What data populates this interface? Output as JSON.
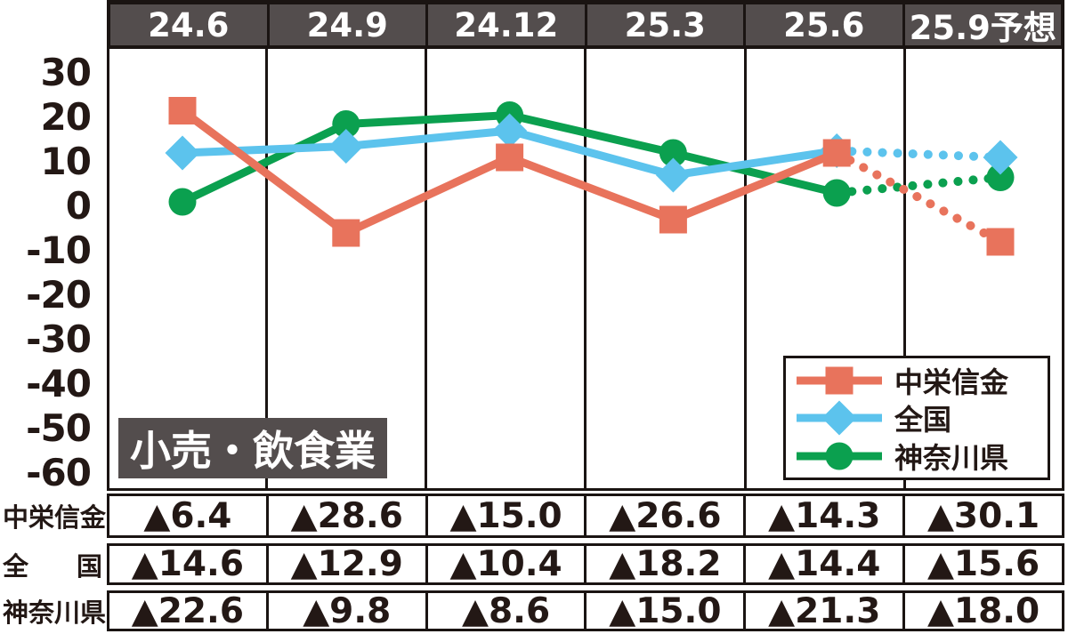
{
  "colors": {
    "panel_gray": "#534D4D",
    "border_ink": "#1A1412",
    "text_ink": "#231815",
    "background": "#FFFFFF",
    "series_red": "#E8735C",
    "series_blue": "#5CC3ED",
    "series_green": "#0BA04F"
  },
  "chart_data": {
    "type": "line",
    "title": "小売・飲食業",
    "x_labels": [
      "24.6",
      "24.9",
      "24.12",
      "25.3",
      "25.6",
      "25.9予想"
    ],
    "y_ticks": [
      30,
      20,
      10,
      0,
      -10,
      -20,
      -30,
      -40,
      -50,
      -60
    ],
    "ylim": [
      -65,
      35
    ],
    "grid": "vertical-column-dividers-only",
    "legend_position": "bottom-right",
    "forecast_last_segment_dotted": true,
    "series": [
      {
        "id": "chuei-shinkin",
        "name": "中栄信金",
        "color": "#E8735C",
        "marker": "square",
        "values": [
          21.5,
          -6,
          11,
          -3,
          12,
          -8
        ]
      },
      {
        "id": "zenkoku",
        "name": "全国",
        "color": "#5CC3ED",
        "marker": "diamond",
        "values": [
          12,
          13.5,
          17,
          7,
          12.5,
          11
        ]
      },
      {
        "id": "kanagawa",
        "name": "神奈川県",
        "color": "#0BA04F",
        "marker": "circle",
        "values": [
          1,
          18.5,
          20.5,
          12,
          3,
          6.5
        ]
      }
    ],
    "table": {
      "negative_mark": "▲",
      "rows": [
        {
          "id": "chuei-shinkin",
          "label": "中栄信金",
          "values": [
            "▲6.4",
            "▲28.6",
            "▲15.0",
            "▲26.6",
            "▲14.3",
            "▲30.1"
          ]
        },
        {
          "id": "zenkoku",
          "label": "全国",
          "values": [
            "▲14.6",
            "▲12.9",
            "▲10.4",
            "▲18.2",
            "▲14.4",
            "▲15.6"
          ]
        },
        {
          "id": "kanagawa",
          "label": "神奈川県",
          "values": [
            "▲22.6",
            "▲9.8",
            "▲8.6",
            "▲15.0",
            "▲21.3",
            "▲18.0"
          ]
        }
      ]
    }
  }
}
